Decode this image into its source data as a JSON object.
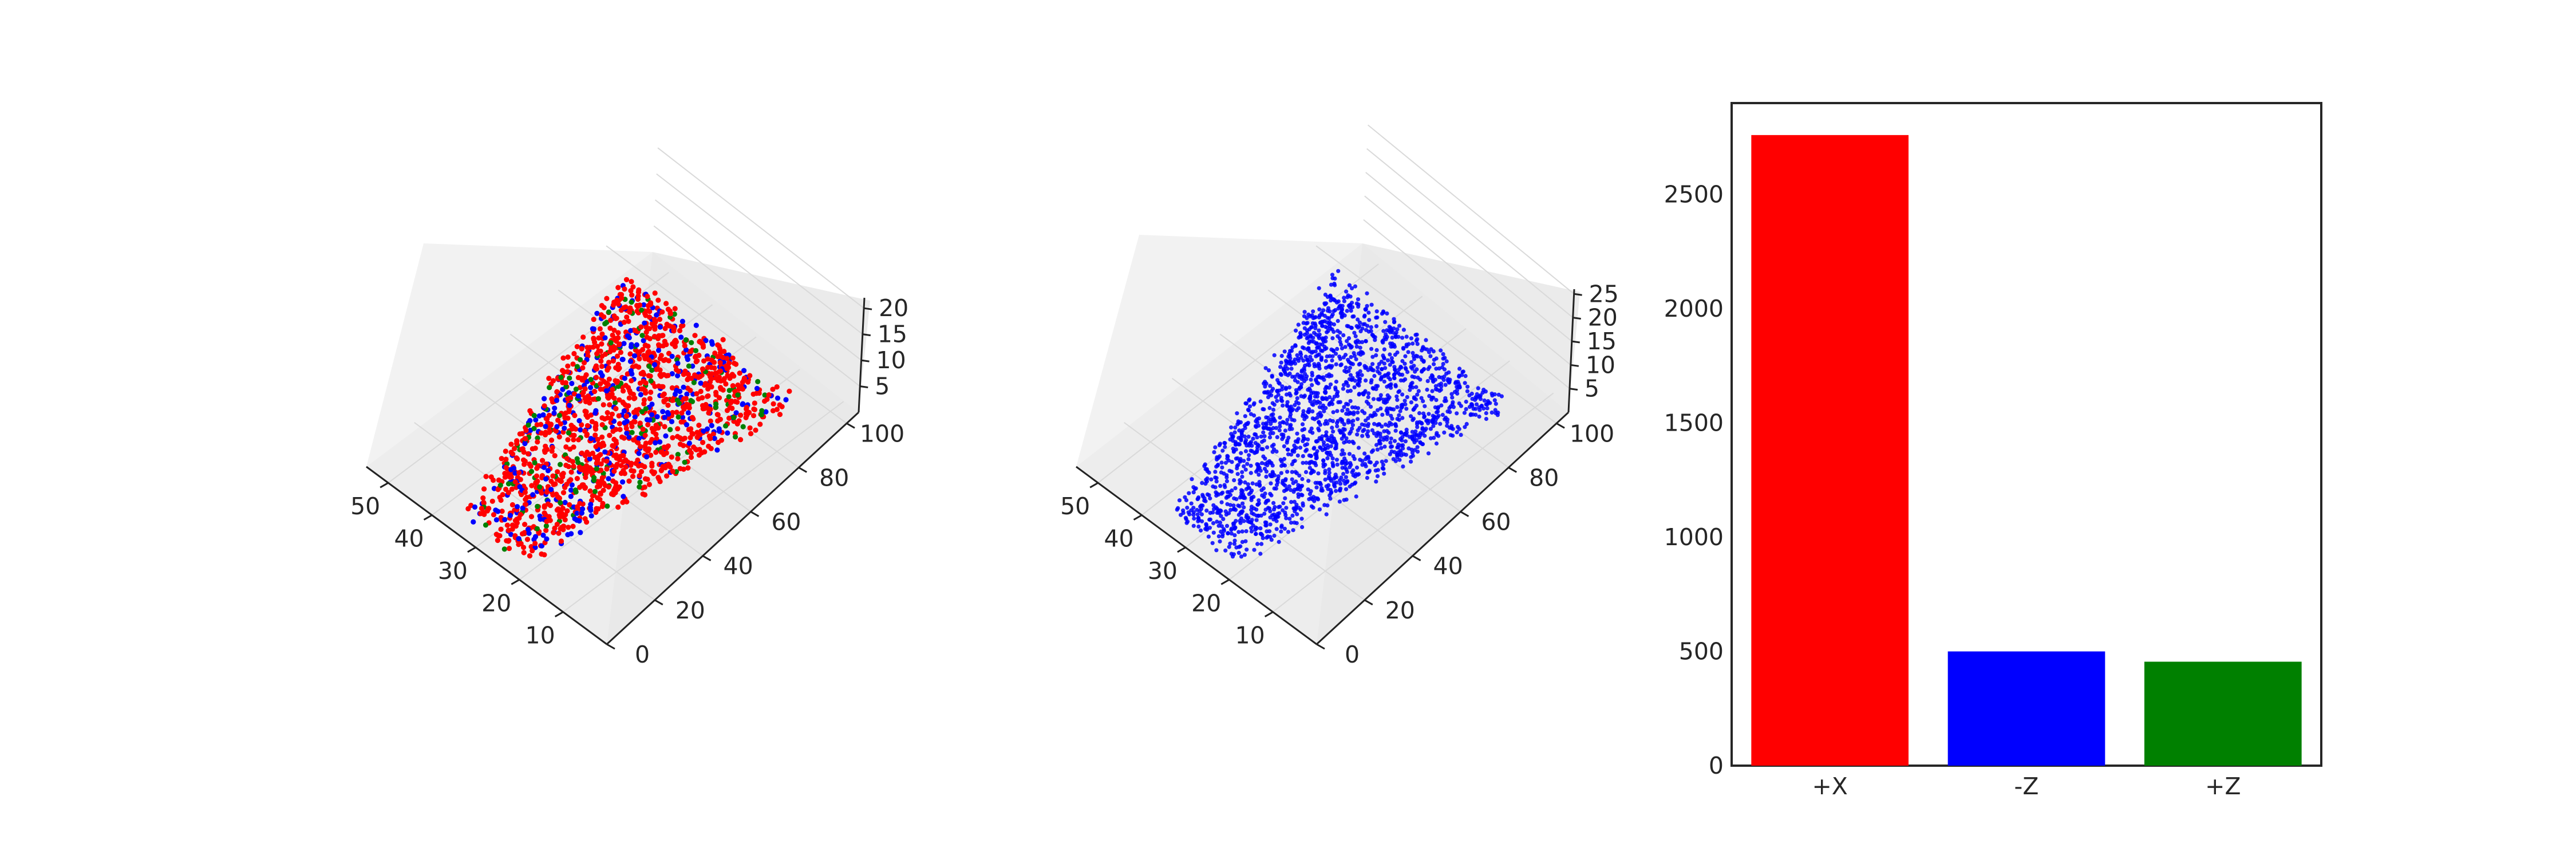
{
  "chart_data": [
    {
      "type": "scatter3d",
      "title": "",
      "x_ticks": [
        "10",
        "20",
        "30",
        "40",
        "50"
      ],
      "y_ticks": [
        "0",
        "20",
        "40",
        "60",
        "80",
        "100"
      ],
      "z_ticks": [
        "5",
        "10",
        "15",
        "20"
      ],
      "xlim": [
        0,
        55
      ],
      "ylim": [
        0,
        105
      ],
      "zlim": [
        0,
        22
      ],
      "point_colors": [
        "#ff0000",
        "#0000ff",
        "#008000"
      ],
      "grid": true
    },
    {
      "type": "scatter3d",
      "title": "",
      "x_ticks": [
        "10",
        "20",
        "30",
        "40",
        "50"
      ],
      "y_ticks": [
        "0",
        "20",
        "40",
        "60",
        "80",
        "100"
      ],
      "z_ticks": [
        "5",
        "10",
        "15",
        "20",
        "25"
      ],
      "xlim": [
        0,
        55
      ],
      "ylim": [
        0,
        105
      ],
      "zlim": [
        0,
        26
      ],
      "point_colors": [
        "#0000ff"
      ],
      "grid": true
    },
    {
      "type": "bar",
      "title": "",
      "xlabel": "",
      "ylabel": "",
      "categories": [
        "+X",
        "-Z",
        "+Z"
      ],
      "values": [
        2760,
        500,
        455
      ],
      "colors": [
        "#ff0000",
        "#0000ff",
        "#008000"
      ],
      "ylim": [
        0,
        2900
      ],
      "y_ticks": [
        0,
        500,
        1000,
        1500,
        2000,
        2500
      ],
      "grid": false
    }
  ]
}
